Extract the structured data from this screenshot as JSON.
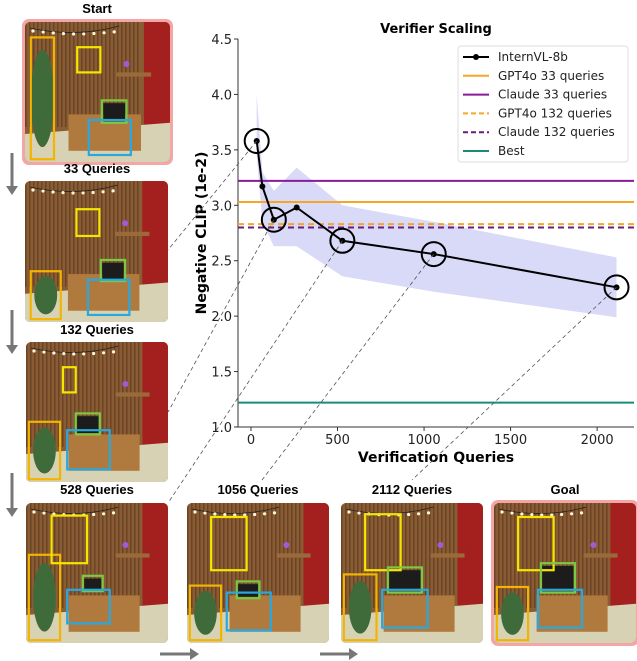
{
  "chart_data": {
    "type": "line",
    "title": "Verifier Scaling",
    "xlabel": "Verification Queries",
    "ylabel": "Negative CLIP (1e-2)",
    "xlim": [
      -75,
      2213
    ],
    "ylim": [
      1.0,
      4.5
    ],
    "xticks": [
      0,
      500,
      1000,
      1500,
      2000
    ],
    "yticks": [
      1.0,
      1.5,
      2.0,
      2.5,
      3.0,
      3.5,
      4.0,
      4.5
    ],
    "grid": false,
    "legend_position": "top-right",
    "series": [
      {
        "name": "InternVL-8b",
        "color": "#000000",
        "x": [
          33,
          66,
          132,
          264,
          528,
          1056,
          2112
        ],
        "y": [
          3.58,
          3.17,
          2.87,
          2.98,
          2.68,
          2.56,
          2.26
        ],
        "band_upper": [
          4.0,
          3.3,
          3.13,
          3.34,
          3.0,
          2.85,
          2.53
        ],
        "band_lower": [
          3.45,
          2.85,
          2.63,
          2.63,
          2.36,
          2.22,
          1.99
        ],
        "band_color": "#c9c9f5",
        "circled_x": [
          33,
          132,
          528,
          1056,
          2112
        ]
      }
    ],
    "reference_lines": [
      {
        "name": "GPT4o 33 queries",
        "y": 3.03,
        "color": "#f5a623",
        "style": "solid"
      },
      {
        "name": "Claude 33 queries",
        "y": 3.22,
        "color": "#8b1a9a",
        "style": "solid"
      },
      {
        "name": "GPT4o 132 queries",
        "y": 2.83,
        "color": "#f5a623",
        "style": "dashed"
      },
      {
        "name": "Claude 132 queries",
        "y": 2.8,
        "color": "#6a1b7a",
        "style": "dashed"
      },
      {
        "name": "Best",
        "y": 1.22,
        "color": "#1a8a7a",
        "style": "solid"
      }
    ]
  },
  "panels": [
    {
      "title": "Start",
      "highlight": true
    },
    {
      "title": "33 Queries",
      "highlight": false
    },
    {
      "title": "132 Queries",
      "highlight": false
    },
    {
      "title": "528 Queries",
      "highlight": false
    },
    {
      "title": "1056 Queries",
      "highlight": false
    },
    {
      "title": "2112 Queries",
      "highlight": false
    },
    {
      "title": "Goal",
      "highlight": true
    }
  ],
  "colors": {
    "highlight": "#f4a6a6",
    "arrow": "#777777",
    "box_plant": "#f2b400",
    "box_frame": "#f5e600",
    "box_tv": "#7ac943",
    "box_cabinet": "#29a8e0"
  }
}
